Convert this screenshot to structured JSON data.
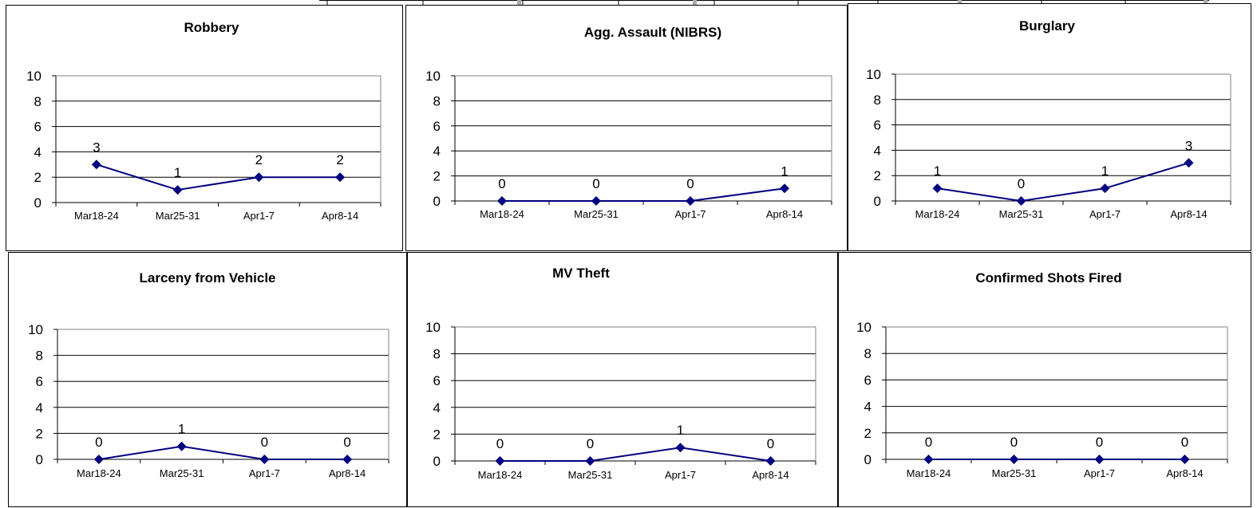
{
  "chart_data": [
    {
      "type": "line",
      "title": "Robbery",
      "categories": [
        "Mar18-24",
        "Mar25-31",
        "Apr1-7",
        "Apr8-14"
      ],
      "values": [
        3,
        1,
        2,
        2
      ],
      "ylim": [
        0,
        10
      ],
      "yticks": [
        0,
        2,
        4,
        6,
        8,
        10
      ],
      "grid": true,
      "color": "#000080"
    },
    {
      "type": "line",
      "title": "Agg. Assault (NIBRS)",
      "categories": [
        "Mar18-24",
        "Mar25-31",
        "Apr1-7",
        "Apr8-14"
      ],
      "values": [
        0,
        0,
        0,
        1
      ],
      "ylim": [
        0,
        10
      ],
      "yticks": [
        0,
        2,
        4,
        6,
        8,
        10
      ],
      "grid": true,
      "color": "#000080"
    },
    {
      "type": "line",
      "title": "Burglary",
      "categories": [
        "Mar18-24",
        "Mar25-31",
        "Apr1-7",
        "Apr8-14"
      ],
      "values": [
        1,
        0,
        1,
        3
      ],
      "ylim": [
        0,
        10
      ],
      "yticks": [
        0,
        2,
        4,
        6,
        8,
        10
      ],
      "grid": true,
      "color": "#000080"
    },
    {
      "type": "line",
      "title": "Larceny from Vehicle",
      "categories": [
        "Mar18-24",
        "Mar25-31",
        "Apr1-7",
        "Apr8-14"
      ],
      "values": [
        0,
        1,
        0,
        0
      ],
      "ylim": [
        0,
        10
      ],
      "yticks": [
        0,
        2,
        4,
        6,
        8,
        10
      ],
      "grid": true,
      "color": "#000080"
    },
    {
      "type": "line",
      "title": "MV Theft",
      "categories": [
        "Mar18-24",
        "Mar25-31",
        "Apr1-7",
        "Apr8-14"
      ],
      "values": [
        0,
        0,
        1,
        0
      ],
      "ylim": [
        0,
        10
      ],
      "yticks": [
        0,
        2,
        4,
        6,
        8,
        10
      ],
      "grid": true,
      "color": "#000080"
    },
    {
      "type": "line",
      "title": "Confirmed Shots Fired",
      "categories": [
        "Mar18-24",
        "Mar25-31",
        "Apr1-7",
        "Apr8-14"
      ],
      "values": [
        0,
        0,
        0,
        0
      ],
      "ylim": [
        0,
        10
      ],
      "yticks": [
        0,
        2,
        4,
        6,
        8,
        10
      ],
      "grid": true,
      "color": "#000080"
    }
  ]
}
